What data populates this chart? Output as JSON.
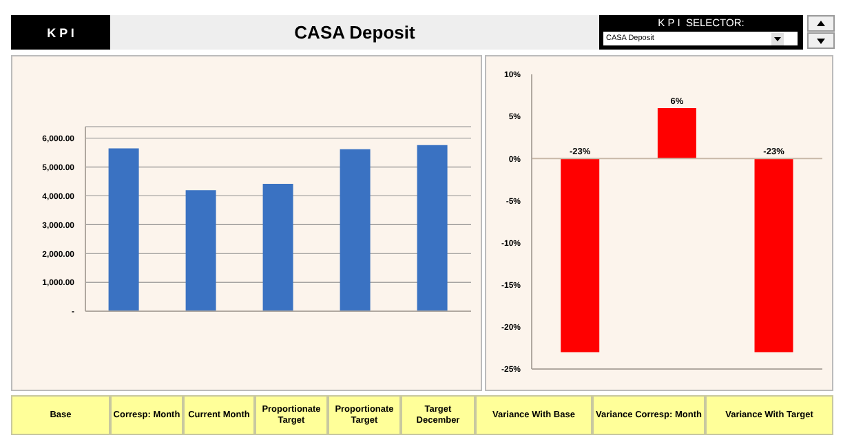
{
  "chart_data": [
    {
      "type": "bar",
      "title": "CASA Deposit",
      "annotations": [
        "K P I",
        "K P I  SELECTOR:",
        "CASA Deposit"
      ],
      "categories": [
        null,
        null,
        null,
        null,
        null
      ],
      "values": [
        5650,
        4200,
        4420,
        5620,
        5760
      ],
      "color": "#3a72c2",
      "ylim": [
        0,
        6400
      ],
      "yticks": [
        {
          "value": 0,
          "label": "-"
        },
        {
          "value": 1000,
          "label": "1,000.00"
        },
        {
          "value": 2000,
          "label": "2,000.00"
        },
        {
          "value": 3000,
          "label": "3,000.00"
        },
        {
          "value": 4000,
          "label": "4,000.00"
        },
        {
          "value": 5000,
          "label": "5,000.00"
        },
        {
          "value": 6000,
          "label": "6,000.00"
        }
      ],
      "grid": "y"
    },
    {
      "type": "bar",
      "categories": [
        null,
        null,
        null
      ],
      "values": [
        -23,
        6,
        -23
      ],
      "color": "#ff0000",
      "value_labels": [
        "-23%",
        "6%",
        "-23%"
      ],
      "ylim": [
        -25,
        10
      ],
      "yticks": [
        {
          "value": -25,
          "label": "-25%"
        },
        {
          "value": -20,
          "label": "-20%"
        },
        {
          "value": -15,
          "label": "-15%"
        },
        {
          "value": -10,
          "label": "-10%"
        },
        {
          "value": -5,
          "label": "-5%"
        },
        {
          "value": 0,
          "label": "0%"
        },
        {
          "value": 5,
          "label": "5%"
        },
        {
          "value": 10,
          "label": "10%"
        }
      ],
      "grid": false,
      "ref_lines": [
        {
          "axis": "y",
          "value": 0,
          "color": "#c8b8a8"
        }
      ]
    },
    {
      "type": "other",
      "annotations": [
        "Base",
        "Corresp: Month",
        "Current Month",
        "Proportionate Target",
        "Proportionate Target",
        "Target December",
        "Variance With Base",
        "Variance Corresp: Month",
        "Variance With Target"
      ]
    }
  ]
}
